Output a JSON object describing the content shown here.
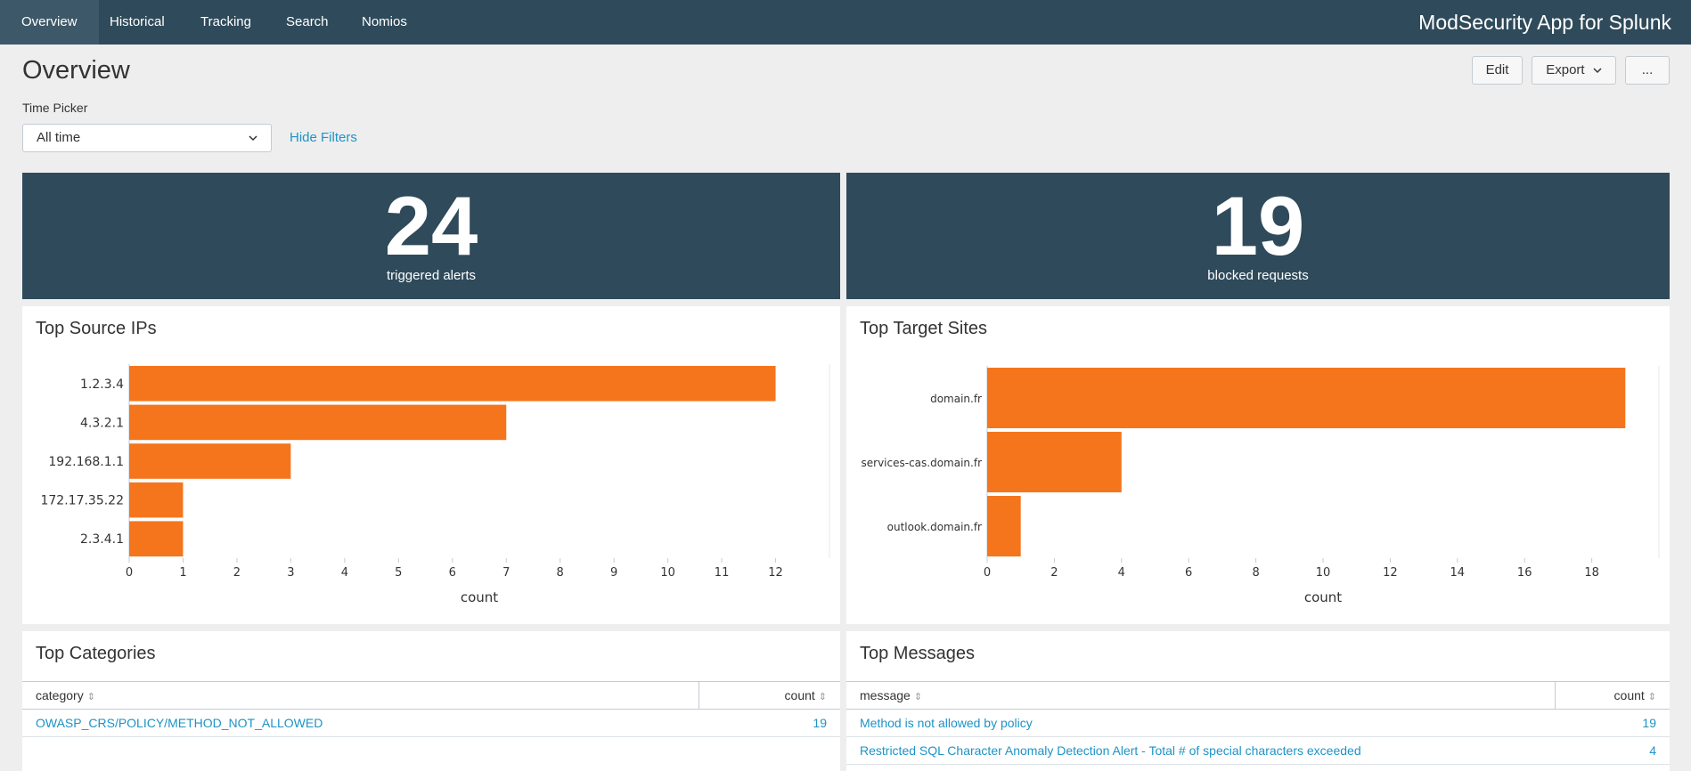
{
  "nav": {
    "items": [
      {
        "label": "Overview",
        "active": true
      },
      {
        "label": "Historical",
        "active": false
      },
      {
        "label": "Tracking",
        "active": false
      },
      {
        "label": "Search",
        "active": false
      },
      {
        "label": "Nomios",
        "active": false
      }
    ],
    "app_title": "ModSecurity App for Splunk"
  },
  "page": {
    "title": "Overview"
  },
  "toolbar": {
    "edit_label": "Edit",
    "export_label": "Export",
    "more_label": "..."
  },
  "filters": {
    "time_picker_label": "Time Picker",
    "time_picker_value": "All time",
    "hide_filters_label": "Hide Filters"
  },
  "singles": [
    {
      "value": "24",
      "caption": "triggered alerts"
    },
    {
      "value": "19",
      "caption": "blocked requests"
    }
  ],
  "panels": {
    "source_ips_title": "Top Source IPs",
    "target_sites_title": "Top Target Sites",
    "categories_title": "Top Categories",
    "messages_title": "Top Messages"
  },
  "colors": {
    "nav_bg": "#2f4a5a",
    "bar": "#f5751d",
    "link": "#1e93c6"
  },
  "chart_data": [
    {
      "type": "bar",
      "orientation": "horizontal",
      "title": "Top Source IPs",
      "categories": [
        "1.2.3.4",
        "4.3.2.1",
        "192.168.1.1",
        "172.17.35.22",
        "2.3.4.1"
      ],
      "values": [
        12,
        7,
        3,
        1,
        1
      ],
      "xlabel": "count",
      "xlim": [
        0,
        13
      ],
      "xticks": [
        0,
        1,
        2,
        3,
        4,
        5,
        6,
        7,
        8,
        9,
        10,
        11,
        12
      ],
      "grid": false
    },
    {
      "type": "bar",
      "orientation": "horizontal",
      "title": "Top Target Sites",
      "categories": [
        "domain.fr",
        "services-cas.domain.fr",
        "outlook.domain.fr"
      ],
      "values": [
        19,
        4,
        1
      ],
      "xlabel": "count",
      "xlim": [
        0,
        20
      ],
      "xticks": [
        0,
        2,
        4,
        6,
        8,
        10,
        12,
        14,
        16,
        18
      ],
      "grid": false
    }
  ],
  "tables": {
    "categories": {
      "headers": [
        "category",
        "count"
      ],
      "rows": [
        [
          "OWASP_CRS/POLICY/METHOD_NOT_ALLOWED",
          "19"
        ]
      ]
    },
    "messages": {
      "headers": [
        "message",
        "count"
      ],
      "rows": [
        [
          "Method is not allowed by policy",
          "19"
        ],
        [
          "Restricted SQL Character Anomaly Detection Alert - Total # of special characters exceeded",
          "4"
        ]
      ]
    }
  }
}
